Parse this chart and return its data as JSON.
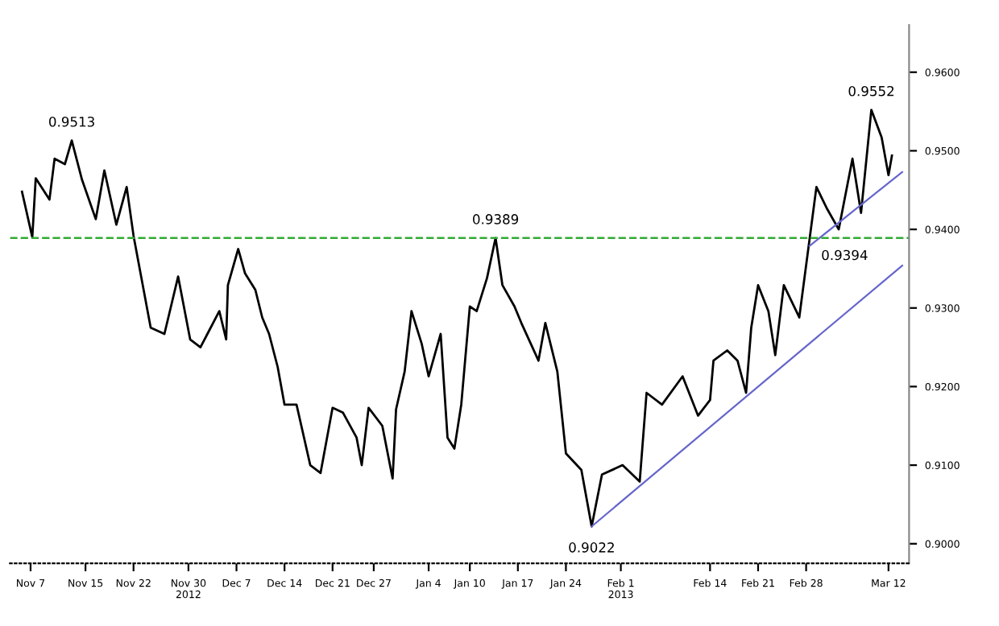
{
  "chart_data": {
    "type": "line",
    "x": [
      "2012-11-05T18:00",
      "2012-11-07T06:00",
      "2012-11-07T18:00",
      "2012-11-09T18:00",
      "2012-11-10T12:00",
      "2012-11-12",
      "2012-11-13",
      "2012-11-14T12:00",
      "2012-11-16T12:00",
      "2012-11-17T18:00",
      "2012-11-19T12:00",
      "2012-11-21",
      "2012-11-22",
      "2012-11-24T12:00",
      "2012-11-26T12:00",
      "2012-11-28T12:00",
      "2012-11-30T06:00",
      "2012-12-01T18:00",
      "2012-12-04T12:00",
      "2012-12-05T12:00",
      "2012-12-05T18:00",
      "2012-12-07T06:00",
      "2012-12-08T06:00",
      "2012-12-09T18:00",
      "2012-12-10T18:00",
      "2012-12-11T18:00",
      "2012-12-13",
      "2012-12-14",
      "2012-12-15T18:00",
      "2012-12-17T18:00",
      "2012-12-19T06:00",
      "2012-12-21",
      "2012-12-22T12:00",
      "2012-12-24T12:00",
      "2012-12-25T06:00",
      "2012-12-26T06:00",
      "2012-12-28T06:00",
      "2012-12-29T18:00",
      "2012-12-30T06:00",
      "2012-12-31T12:00",
      "2013-01-01T12:00",
      "2013-01-03",
      "2013-01-04",
      "2013-01-05T18:00",
      "2013-01-06T18:00",
      "2013-01-07T18:00",
      "2013-01-08T18:00",
      "2013-01-10",
      "2013-01-11",
      "2013-01-12T12:00",
      "2013-01-13T18:00",
      "2013-01-14T18:00",
      "2013-01-16T12:00",
      "2013-01-17T12:00",
      "2013-01-20",
      "2013-01-21",
      "2013-01-22T18:00",
      "2013-01-24",
      "2013-01-26T06:00",
      "2013-01-27T18:00",
      "2013-01-29T06:00",
      "2013-02-01T06:00",
      "2013-02-03T18:00",
      "2013-02-04T18:00",
      "2013-02-07",
      "2013-02-10",
      "2013-02-12T06:00",
      "2013-02-14",
      "2013-02-14T12:00",
      "2013-02-16T12:00",
      "2013-02-18",
      "2013-02-19T06:00",
      "2013-02-20",
      "2013-02-21",
      "2013-02-22T12:00",
      "2013-02-23T12:00",
      "2013-02-24T18:00",
      "2013-02-27",
      "2013-02-28T06:00",
      "2013-03-01T12:00",
      "2013-03-03",
      "2013-03-04T18:00",
      "2013-03-06T18:00",
      "2013-03-08",
      "2013-03-09T12:00",
      "2013-03-11",
      "2013-03-12",
      "2013-03-12T12:00"
    ],
    "series": [
      {
        "color": "#000000",
        "values": [
          0.9448,
          0.939,
          0.9465,
          0.9438,
          0.949,
          0.9483,
          0.9513,
          0.9463,
          0.9413,
          0.9475,
          0.9406,
          0.9454,
          0.9392,
          0.9275,
          0.9267,
          0.934,
          0.926,
          0.925,
          0.9296,
          0.926,
          0.9329,
          0.9375,
          0.9344,
          0.9323,
          0.9288,
          0.9267,
          0.9225,
          0.9177,
          0.9177,
          0.91,
          0.909,
          0.9173,
          0.9167,
          0.9135,
          0.91,
          0.9173,
          0.915,
          0.9083,
          0.9171,
          0.9219,
          0.9296,
          0.9254,
          0.9213,
          0.9267,
          0.9135,
          0.9121,
          0.9177,
          0.9302,
          0.9296,
          0.9338,
          0.9389,
          0.9329,
          0.9302,
          0.9281,
          0.9233,
          0.9281,
          0.9219,
          0.9115,
          0.9094,
          0.9022,
          0.9088,
          0.91,
          0.9079,
          0.9192,
          0.9177,
          0.9213,
          0.9163,
          0.9183,
          0.9233,
          0.9246,
          0.9233,
          0.9192,
          0.9275,
          0.9329,
          0.9296,
          0.924,
          0.9329,
          0.9288,
          0.9371,
          0.9454,
          0.9427,
          0.94,
          0.949,
          0.9421,
          0.9552,
          0.9517,
          0.9469,
          0.9494
        ]
      },
      {
        "type": "line",
        "color": "#6666cc",
        "x": [
          "2013-01-27T18:00",
          "2013-03-14"
        ],
        "values": [
          0.9022,
          0.9354
        ]
      },
      {
        "type": "line",
        "color": "#6666cc",
        "x": [
          "2013-02-28T12:00",
          "2013-03-14"
        ],
        "values": [
          0.9379,
          0.9473
        ]
      }
    ],
    "xlim": [
      "2012-11-04",
      "2013-03-15"
    ],
    "ylim": [
      0.8975,
      0.966
    ],
    "xticks": [
      {
        "value": "2012-11-07",
        "label": "Nov 7"
      },
      {
        "value": "2012-11-15",
        "label": "Nov 15"
      },
      {
        "value": "2012-11-22",
        "label": "Nov 22"
      },
      {
        "value": "2012-11-30",
        "label": "Nov 30\n2012"
      },
      {
        "value": "2012-12-07",
        "label": "Dec 7"
      },
      {
        "value": "2012-12-14",
        "label": "Dec 14"
      },
      {
        "value": "2012-12-21",
        "label": "Dec 21"
      },
      {
        "value": "2012-12-27",
        "label": "Dec 27"
      },
      {
        "value": "2013-01-04",
        "label": "Jan 4"
      },
      {
        "value": "2013-01-10",
        "label": "Jan 10"
      },
      {
        "value": "2013-01-17",
        "label": "Jan 17"
      },
      {
        "value": "2013-01-24",
        "label": "Jan 24"
      },
      {
        "value": "2013-02-01",
        "label": "Feb 1\n2013"
      },
      {
        "value": "2013-02-14",
        "label": "Feb 14"
      },
      {
        "value": "2013-02-21",
        "label": "Feb 21"
      },
      {
        "value": "2013-02-28",
        "label": "Feb 28"
      },
      {
        "value": "2013-03-12",
        "label": "Mar 12"
      }
    ],
    "yticks": [
      {
        "value": 0.9,
        "label": "0.9000"
      },
      {
        "value": 0.91,
        "label": "0.9100"
      },
      {
        "value": 0.92,
        "label": "0.9200"
      },
      {
        "value": 0.93,
        "label": "0.9300"
      },
      {
        "value": 0.94,
        "label": "0.9400"
      },
      {
        "value": 0.95,
        "label": "0.9500"
      },
      {
        "value": 0.96,
        "label": "0.9600"
      }
    ],
    "ref_lines": [
      {
        "axis": "y",
        "value": 0.9389,
        "color": "#33aa33",
        "line_style": "dashed"
      }
    ],
    "annotations": [
      {
        "text": "0.9513",
        "x": "2012-11-13",
        "y": 0.9513
      },
      {
        "text": "0.9389",
        "x": "2013-01-13T18:00",
        "y": 0.9389
      },
      {
        "text": "0.9022",
        "x": "2013-01-27T18:00",
        "y": 0.9022
      },
      {
        "text": "0.9394",
        "x": "2013-03-03",
        "y": 0.9394
      },
      {
        "text": "0.9552",
        "x": "2013-03-09T12:00",
        "y": 0.9552
      }
    ],
    "grid": false,
    "legend": false
  }
}
